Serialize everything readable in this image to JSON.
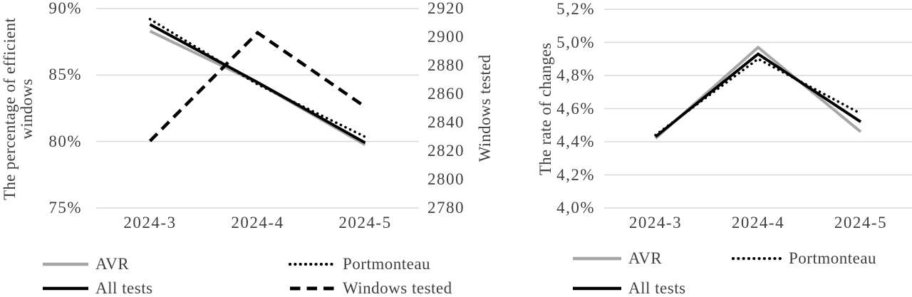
{
  "colors": {
    "axis_text": "#404040",
    "gridline": "#d9d9d9",
    "series_gray": "#a6a6a6",
    "series_black": "#000000"
  },
  "chart_data": [
    {
      "type": "line",
      "x": [
        "2024-3",
        "2024-4",
        "2024-5"
      ],
      "y_axis_left": {
        "label": "The percentage of efficient windows",
        "tick_labels": [
          "90%",
          "85%",
          "80%",
          "75%"
        ],
        "tick_values": [
          90,
          85,
          80,
          75
        ],
        "range": [
          75,
          90
        ]
      },
      "y_axis_right": {
        "label": "Windows tested",
        "tick_labels": [
          "2920",
          "2900",
          "2880",
          "2860",
          "2840",
          "2820",
          "2800",
          "2780"
        ],
        "tick_values": [
          2920,
          2900,
          2880,
          2860,
          2840,
          2820,
          2800,
          2780
        ],
        "range": [
          2780,
          2920
        ]
      },
      "grid": true,
      "legend_position": "bottom",
      "series": [
        {
          "name": "AVR",
          "axis": "left",
          "line": "solid",
          "color": "#a6a6a6",
          "values": [
            88.3,
            84.4,
            79.75
          ]
        },
        {
          "name": "All tests",
          "axis": "left",
          "line": "solid",
          "color": "#000000",
          "values": [
            88.8,
            84.45,
            79.9
          ]
        },
        {
          "name": "Portmonteau",
          "axis": "left",
          "line": "dotted",
          "color": "#000000",
          "values": [
            89.2,
            84.3,
            80.35
          ]
        },
        {
          "name": "Windows tested",
          "axis": "right",
          "line": "dashed",
          "color": "#000000",
          "values": [
            2827,
            2903,
            2851
          ]
        }
      ],
      "legend_rows": [
        [
          "AVR",
          "Portmonteau"
        ],
        [
          "All tests",
          "Windows tested"
        ]
      ]
    },
    {
      "type": "line",
      "x": [
        "2024-3",
        "2024-4",
        "2024-5"
      ],
      "y_axis_left": {
        "label": "The rate of changes",
        "tick_labels": [
          "5,2%",
          "5,0%",
          "4,8%",
          "4,6%",
          "4,4%",
          "4,2%",
          "4,0%"
        ],
        "tick_values": [
          5.2,
          5.0,
          4.8,
          4.6,
          4.4,
          4.2,
          4.0
        ],
        "range": [
          4.0,
          5.2
        ]
      },
      "grid": true,
      "legend_position": "bottom",
      "series": [
        {
          "name": "AVR",
          "axis": "left",
          "line": "solid",
          "color": "#a6a6a6",
          "values": [
            4.42,
            4.97,
            4.46
          ]
        },
        {
          "name": "All tests",
          "axis": "left",
          "line": "solid",
          "color": "#000000",
          "values": [
            4.43,
            4.93,
            4.52
          ]
        },
        {
          "name": "Portmonteau",
          "axis": "left",
          "line": "dotted",
          "color": "#000000",
          "values": [
            4.44,
            4.9,
            4.57
          ]
        }
      ],
      "legend_rows": [
        [
          "AVR",
          "Portmonteau"
        ],
        [
          "All tests"
        ]
      ]
    }
  ]
}
